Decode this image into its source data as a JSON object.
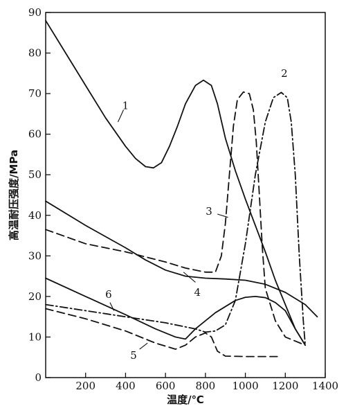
{
  "chart_data": {
    "type": "line",
    "xlabel": "温度/℃",
    "ylabel": "高温耐压强度/MPa",
    "xlim": [
      0,
      1400
    ],
    "ylim": [
      0,
      90
    ],
    "x_ticks": [
      200,
      400,
      600,
      800,
      1000,
      1200,
      1400
    ],
    "y_ticks": [
      0,
      10,
      20,
      30,
      40,
      50,
      60,
      70,
      80,
      90
    ],
    "grid": false,
    "series": [
      {
        "name": "1",
        "line_style": "solid",
        "color": "#111111",
        "x": [
          0,
          100,
          200,
          300,
          400,
          450,
          500,
          540,
          580,
          620,
          660,
          700,
          750,
          790,
          830,
          860,
          900,
          950,
          1000,
          1050,
          1100,
          1150,
          1200,
          1250,
          1300
        ],
        "y": [
          88,
          80,
          72,
          64,
          57,
          54,
          52,
          51.7,
          53,
          57,
          62,
          67.5,
          72,
          73.3,
          72,
          67.5,
          59,
          51,
          44,
          37.5,
          31,
          24,
          18,
          12,
          8
        ],
        "label": {
          "x": 400,
          "y": 67
        },
        "leader": [
          [
            390,
            66
          ],
          [
            362,
            63
          ]
        ]
      },
      {
        "name": "2",
        "line_style": "dash-dot",
        "color": "#111111",
        "x": [
          0,
          200,
          400,
          600,
          700,
          750,
          800,
          850,
          900,
          950,
          1000,
          1050,
          1100,
          1140,
          1180,
          1210,
          1230,
          1250,
          1270,
          1290,
          1300
        ],
        "y": [
          18,
          16.5,
          15,
          13.5,
          12.5,
          12,
          11.2,
          11.5,
          13,
          19,
          33,
          50,
          63,
          69,
          70.3,
          69,
          63,
          50,
          30,
          14,
          8
        ],
        "label": {
          "x": 1195,
          "y": 75
        }
      },
      {
        "name": "3",
        "line_style": "dashed",
        "color": "#111111",
        "x": [
          0,
          200,
          400,
          600,
          700,
          800,
          850,
          880,
          900,
          920,
          940,
          960,
          990,
          1020,
          1040,
          1055,
          1070,
          1085,
          1100,
          1150,
          1200,
          1300
        ],
        "y": [
          36.5,
          33,
          31,
          28.5,
          27,
          26,
          26,
          30,
          38,
          50,
          62,
          68.5,
          70.4,
          70,
          66,
          58,
          45,
          32,
          22,
          14,
          10,
          8
        ],
        "label": {
          "x": 818,
          "y": 41
        },
        "leader": [
          [
            860,
            40.3
          ],
          [
            913,
            39.5
          ]
        ]
      },
      {
        "name": "4",
        "line_style": "solid",
        "color": "#111111",
        "x": [
          0,
          200,
          400,
          500,
          600,
          700,
          800,
          900,
          1000,
          1100,
          1200,
          1300,
          1360
        ],
        "y": [
          43.5,
          37.5,
          32,
          29,
          26.5,
          25,
          24.5,
          24.3,
          24,
          23,
          21,
          18,
          15
        ],
        "label": {
          "x": 760,
          "y": 21
        },
        "leader": [
          [
            750,
            23.5
          ],
          [
            690,
            26
          ]
        ]
      },
      {
        "name": "5",
        "line_style": "dashed",
        "color": "#111111",
        "x": [
          0,
          200,
          400,
          550,
          650,
          700,
          750,
          800,
          830,
          860,
          900,
          1000,
          1100,
          1160
        ],
        "y": [
          17,
          14.5,
          11.5,
          8.5,
          7,
          8,
          10,
          11,
          10,
          6.5,
          5.3,
          5.2,
          5.2,
          5.2
        ],
        "label": {
          "x": 440,
          "y": 5.5
        },
        "leader": [
          [
            470,
            7
          ],
          [
            510,
            8.5
          ]
        ]
      },
      {
        "name": "6",
        "line_style": "solid",
        "color": "#111111",
        "x": [
          0,
          200,
          400,
          550,
          650,
          700,
          750,
          850,
          950,
          1000,
          1050,
          1100,
          1150,
          1200,
          1250,
          1300
        ],
        "y": [
          24.5,
          20,
          15.5,
          12,
          10,
          9.5,
          12,
          16,
          19,
          19.8,
          20,
          19.7,
          18.5,
          16.5,
          12,
          8
        ],
        "label": {
          "x": 315,
          "y": 20.5
        },
        "leader": [
          [
            322,
            18.5
          ],
          [
            342,
            16.5
          ]
        ]
      }
    ]
  }
}
